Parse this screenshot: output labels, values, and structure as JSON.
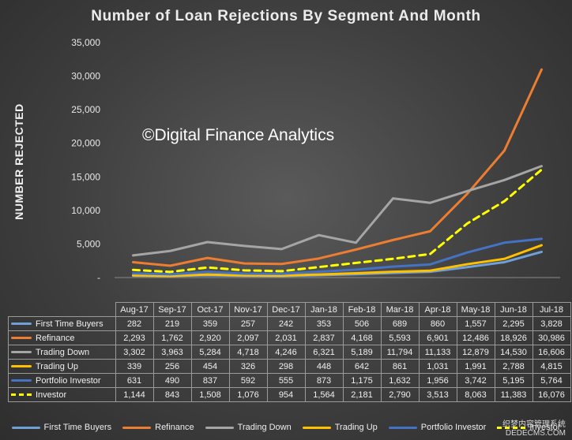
{
  "chart_data": {
    "type": "line",
    "title": "Number of Loan Rejections By Segment And Month",
    "ylabel": "NUMBER REJECTED",
    "xlabel": "",
    "ylim": [
      0,
      35000
    ],
    "yticks": [
      "-",
      "5,000",
      "10,000",
      "15,000",
      "20,000",
      "25,000",
      "30,000",
      "35,000"
    ],
    "annotation": "©Digital Finance Analytics",
    "grid": false,
    "legend_position": "bottom",
    "categories": [
      "Aug-17",
      "Sep-17",
      "Oct-17",
      "Nov-17",
      "Dec-17",
      "Jan-18",
      "Feb-18",
      "Mar-18",
      "Apr-18",
      "May-18",
      "Jun-18",
      "Jul-18"
    ],
    "series": [
      {
        "name": "First Time Buyers",
        "color": "#6fa0d8",
        "dash": false,
        "values": [
          282,
          219,
          359,
          257,
          242,
          353,
          506,
          689,
          860,
          1557,
          2295,
          3828
        ],
        "labels": [
          "282",
          "219",
          "359",
          "257",
          "242",
          "353",
          "506",
          "689",
          "860",
          "1,557",
          "2,295",
          "3,828"
        ]
      },
      {
        "name": "Refinance",
        "color": "#ed7d31",
        "dash": false,
        "values": [
          2293,
          1762,
          2920,
          2097,
          2031,
          2837,
          4168,
          5593,
          6901,
          12486,
          18926,
          30986
        ],
        "labels": [
          "2,293",
          "1,762",
          "2,920",
          "2,097",
          "2,031",
          "2,837",
          "4,168",
          "5,593",
          "6,901",
          "12,486",
          "18,926",
          "30,986"
        ]
      },
      {
        "name": "Trading Down",
        "color": "#a5a5a5",
        "dash": false,
        "values": [
          3302,
          3963,
          5284,
          4718,
          4246,
          6321,
          5189,
          11794,
          11133,
          12879,
          14530,
          16606
        ],
        "labels": [
          "3,302",
          "3,963",
          "5,284",
          "4,718",
          "4,246",
          "6,321",
          "5,189",
          "11,794",
          "11,133",
          "12,879",
          "14,530",
          "16,606"
        ]
      },
      {
        "name": "Trading Up",
        "color": "#ffc000",
        "dash": false,
        "values": [
          339,
          256,
          454,
          326,
          298,
          448,
          642,
          861,
          1031,
          1991,
          2788,
          4815
        ],
        "labels": [
          "339",
          "256",
          "454",
          "326",
          "298",
          "448",
          "642",
          "861",
          "1,031",
          "1,991",
          "2,788",
          "4,815"
        ]
      },
      {
        "name": "Portfolio Investor",
        "color": "#4472c4",
        "dash": false,
        "values": [
          631,
          490,
          837,
          592,
          555,
          873,
          1175,
          1632,
          1956,
          3742,
          5195,
          5764
        ],
        "labels": [
          "631",
          "490",
          "837",
          "592",
          "555",
          "873",
          "1,175",
          "1,632",
          "1,956",
          "3,742",
          "5,195",
          "5,764"
        ]
      },
      {
        "name": "Investor",
        "color": "#ffff00",
        "dash": true,
        "values": [
          1144,
          843,
          1508,
          1076,
          954,
          1564,
          2181,
          2790,
          3513,
          8063,
          11383,
          16076
        ],
        "labels": [
          "1,144",
          "843",
          "1,508",
          "1,076",
          "954",
          "1,564",
          "2,181",
          "2,790",
          "3,513",
          "8,063",
          "11,383",
          "16,076"
        ]
      }
    ]
  },
  "footer_watermark": [
    "织梦内容管理系统",
    "DEDECMS.COM"
  ]
}
